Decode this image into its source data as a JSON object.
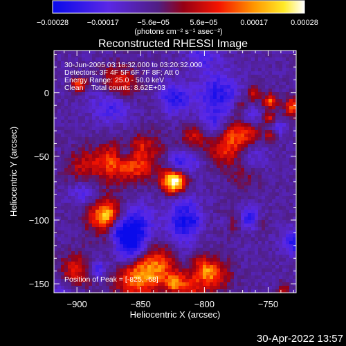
{
  "chart_data": {
    "type": "heatmap",
    "title": "Reconstructed RHESSI Image",
    "xlabel": "Heliocentric X (arcsec)",
    "ylabel": "Heliocentric Y (arcsec)",
    "xlim": [
      -918,
      -728
    ],
    "ylim": [
      -157,
      33
    ],
    "xticks": [
      -900,
      -850,
      -800,
      -750
    ],
    "xtick_labels": [
      "−900",
      "−850",
      "−800",
      "−750"
    ],
    "yticks": [
      0,
      -50,
      -100,
      -150
    ],
    "ytick_labels": [
      "0",
      "−50",
      "−100",
      "−150"
    ],
    "grid": false,
    "colormap": "blue-purple-red-yellow-white",
    "colorbar": {
      "range": [
        -0.00028,
        0.00028
      ],
      "tick_labels": [
        "−0.00028",
        "−0.00017",
        "−5.6e−05",
        "5.6e−05",
        "0.00017",
        "0.00028"
      ],
      "label": "(photons cm⁻² s⁻¹ asec⁻²)"
    },
    "annotations": [
      "30-Jun-2005 03:18:32.000 to 03:20:32.000",
      "Detectors: 3F 4F 5F 6F 7F 8F; Att 0",
      "Energy Range: 25.0 - 50.0 keV",
      "Clean    Total counts: 8.62E+03"
    ],
    "peak_label": "Position of Peak = [-825, -68]",
    "peak": [
      -825,
      -68
    ]
  },
  "footer_timestamp": "30-Apr-2022 13:57",
  "colors": {
    "background": "#000000",
    "text": "#ffffff"
  }
}
